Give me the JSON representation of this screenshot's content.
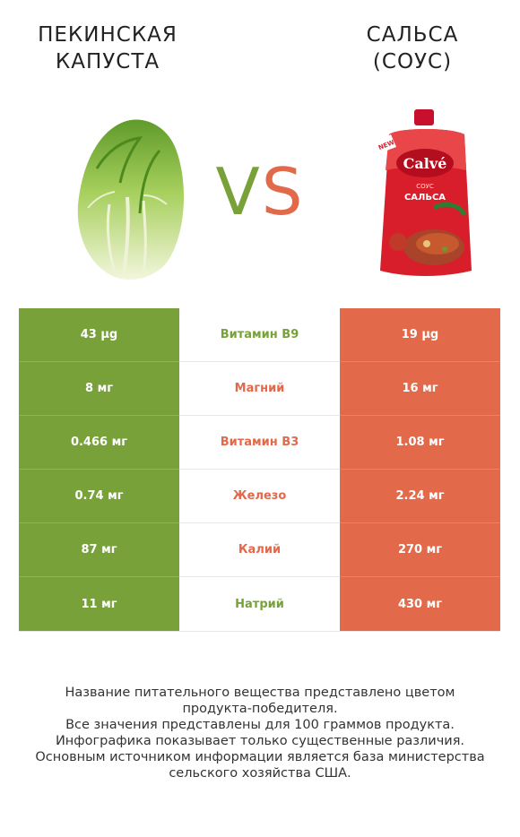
{
  "left_product": {
    "title_line1": "ПЕКИНСКАЯ",
    "title_line2": "КАПУСТА",
    "color": "#78a239"
  },
  "right_product": {
    "title_line1": "САЛЬСА",
    "title_line2": "(СОУС)",
    "color": "#e2694a",
    "package": {
      "badge": "NEW",
      "brand": "Calvé",
      "sub": "СОУС",
      "name": "САЛЬСА"
    }
  },
  "vs": {
    "v": "V",
    "s": "S"
  },
  "rows": [
    {
      "left": "43 µg",
      "nutrient": "Витамин B9",
      "right": "19 µg",
      "winner": "left"
    },
    {
      "left": "8 мг",
      "nutrient": "Магний",
      "right": "16 мг",
      "winner": "right"
    },
    {
      "left": "0.466 мг",
      "nutrient": "Витамин B3",
      "right": "1.08 мг",
      "winner": "right"
    },
    {
      "left": "0.74 мг",
      "nutrient": "Железо",
      "right": "2.24 мг",
      "winner": "right"
    },
    {
      "left": "87 мг",
      "nutrient": "Калий",
      "right": "270 мг",
      "winner": "right"
    },
    {
      "left": "11 мг",
      "nutrient": "Натрий",
      "right": "430 мг",
      "winner": "left"
    }
  ],
  "footer": {
    "line1": "Название питательного вещества представлено цветом",
    "line2": "продукта-победителя.",
    "line3": "Все значения представлены для 100 граммов продукта.",
    "line4": "Инфографика показывает только существенные различия.",
    "line5": "Основным источником информации является база министерства",
    "line6": "сельского хозяйства США."
  }
}
